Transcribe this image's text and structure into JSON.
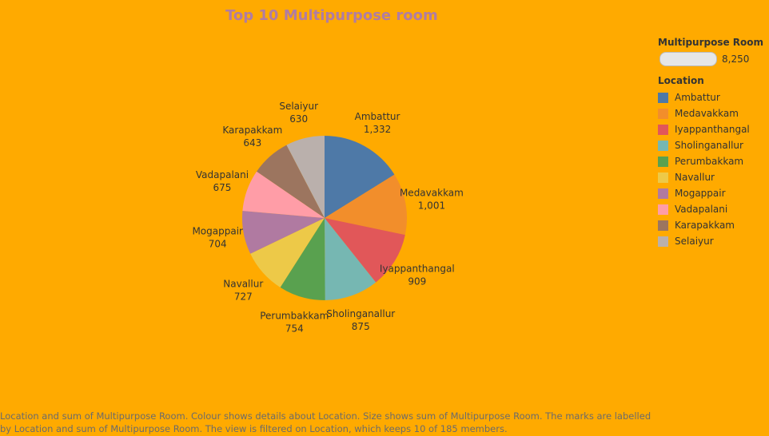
{
  "chart_data": {
    "type": "pie",
    "title": "Top 10 Multipurpose room",
    "categories": [
      "Ambattur",
      "Medavakkam",
      "Iyappanthangal",
      "Sholinganallur",
      "Perumbakkam",
      "Navallur",
      "Mogappair",
      "Vadapalani",
      "Karapakkam",
      "Selaiyur"
    ],
    "values": [
      1332,
      1001,
      909,
      875,
      754,
      727,
      704,
      675,
      643,
      630
    ],
    "value_labels": [
      "1,332",
      "1,001",
      "909",
      "875",
      "754",
      "727",
      "704",
      "675",
      "643",
      "630"
    ],
    "colors": [
      "#4E79A7",
      "#F28E2B",
      "#E15759",
      "#76B7B2",
      "#59A14F",
      "#EDC948",
      "#B07AA1",
      "#FF9DA7",
      "#9C755F",
      "#BAB0AC"
    ],
    "legend_placement": "right"
  },
  "size_legend": {
    "title": "Multipurpose Room",
    "value": "8,250"
  },
  "color_legend": {
    "title": "Location"
  },
  "caption": "Location and sum of Multipurpose Room.  Colour shows details about Location.  Size shows sum of Multipurpose Room.  The marks are labelled by Location and sum of Multipurpose Room. The view is filtered on Location, which keeps 10 of 185 members."
}
